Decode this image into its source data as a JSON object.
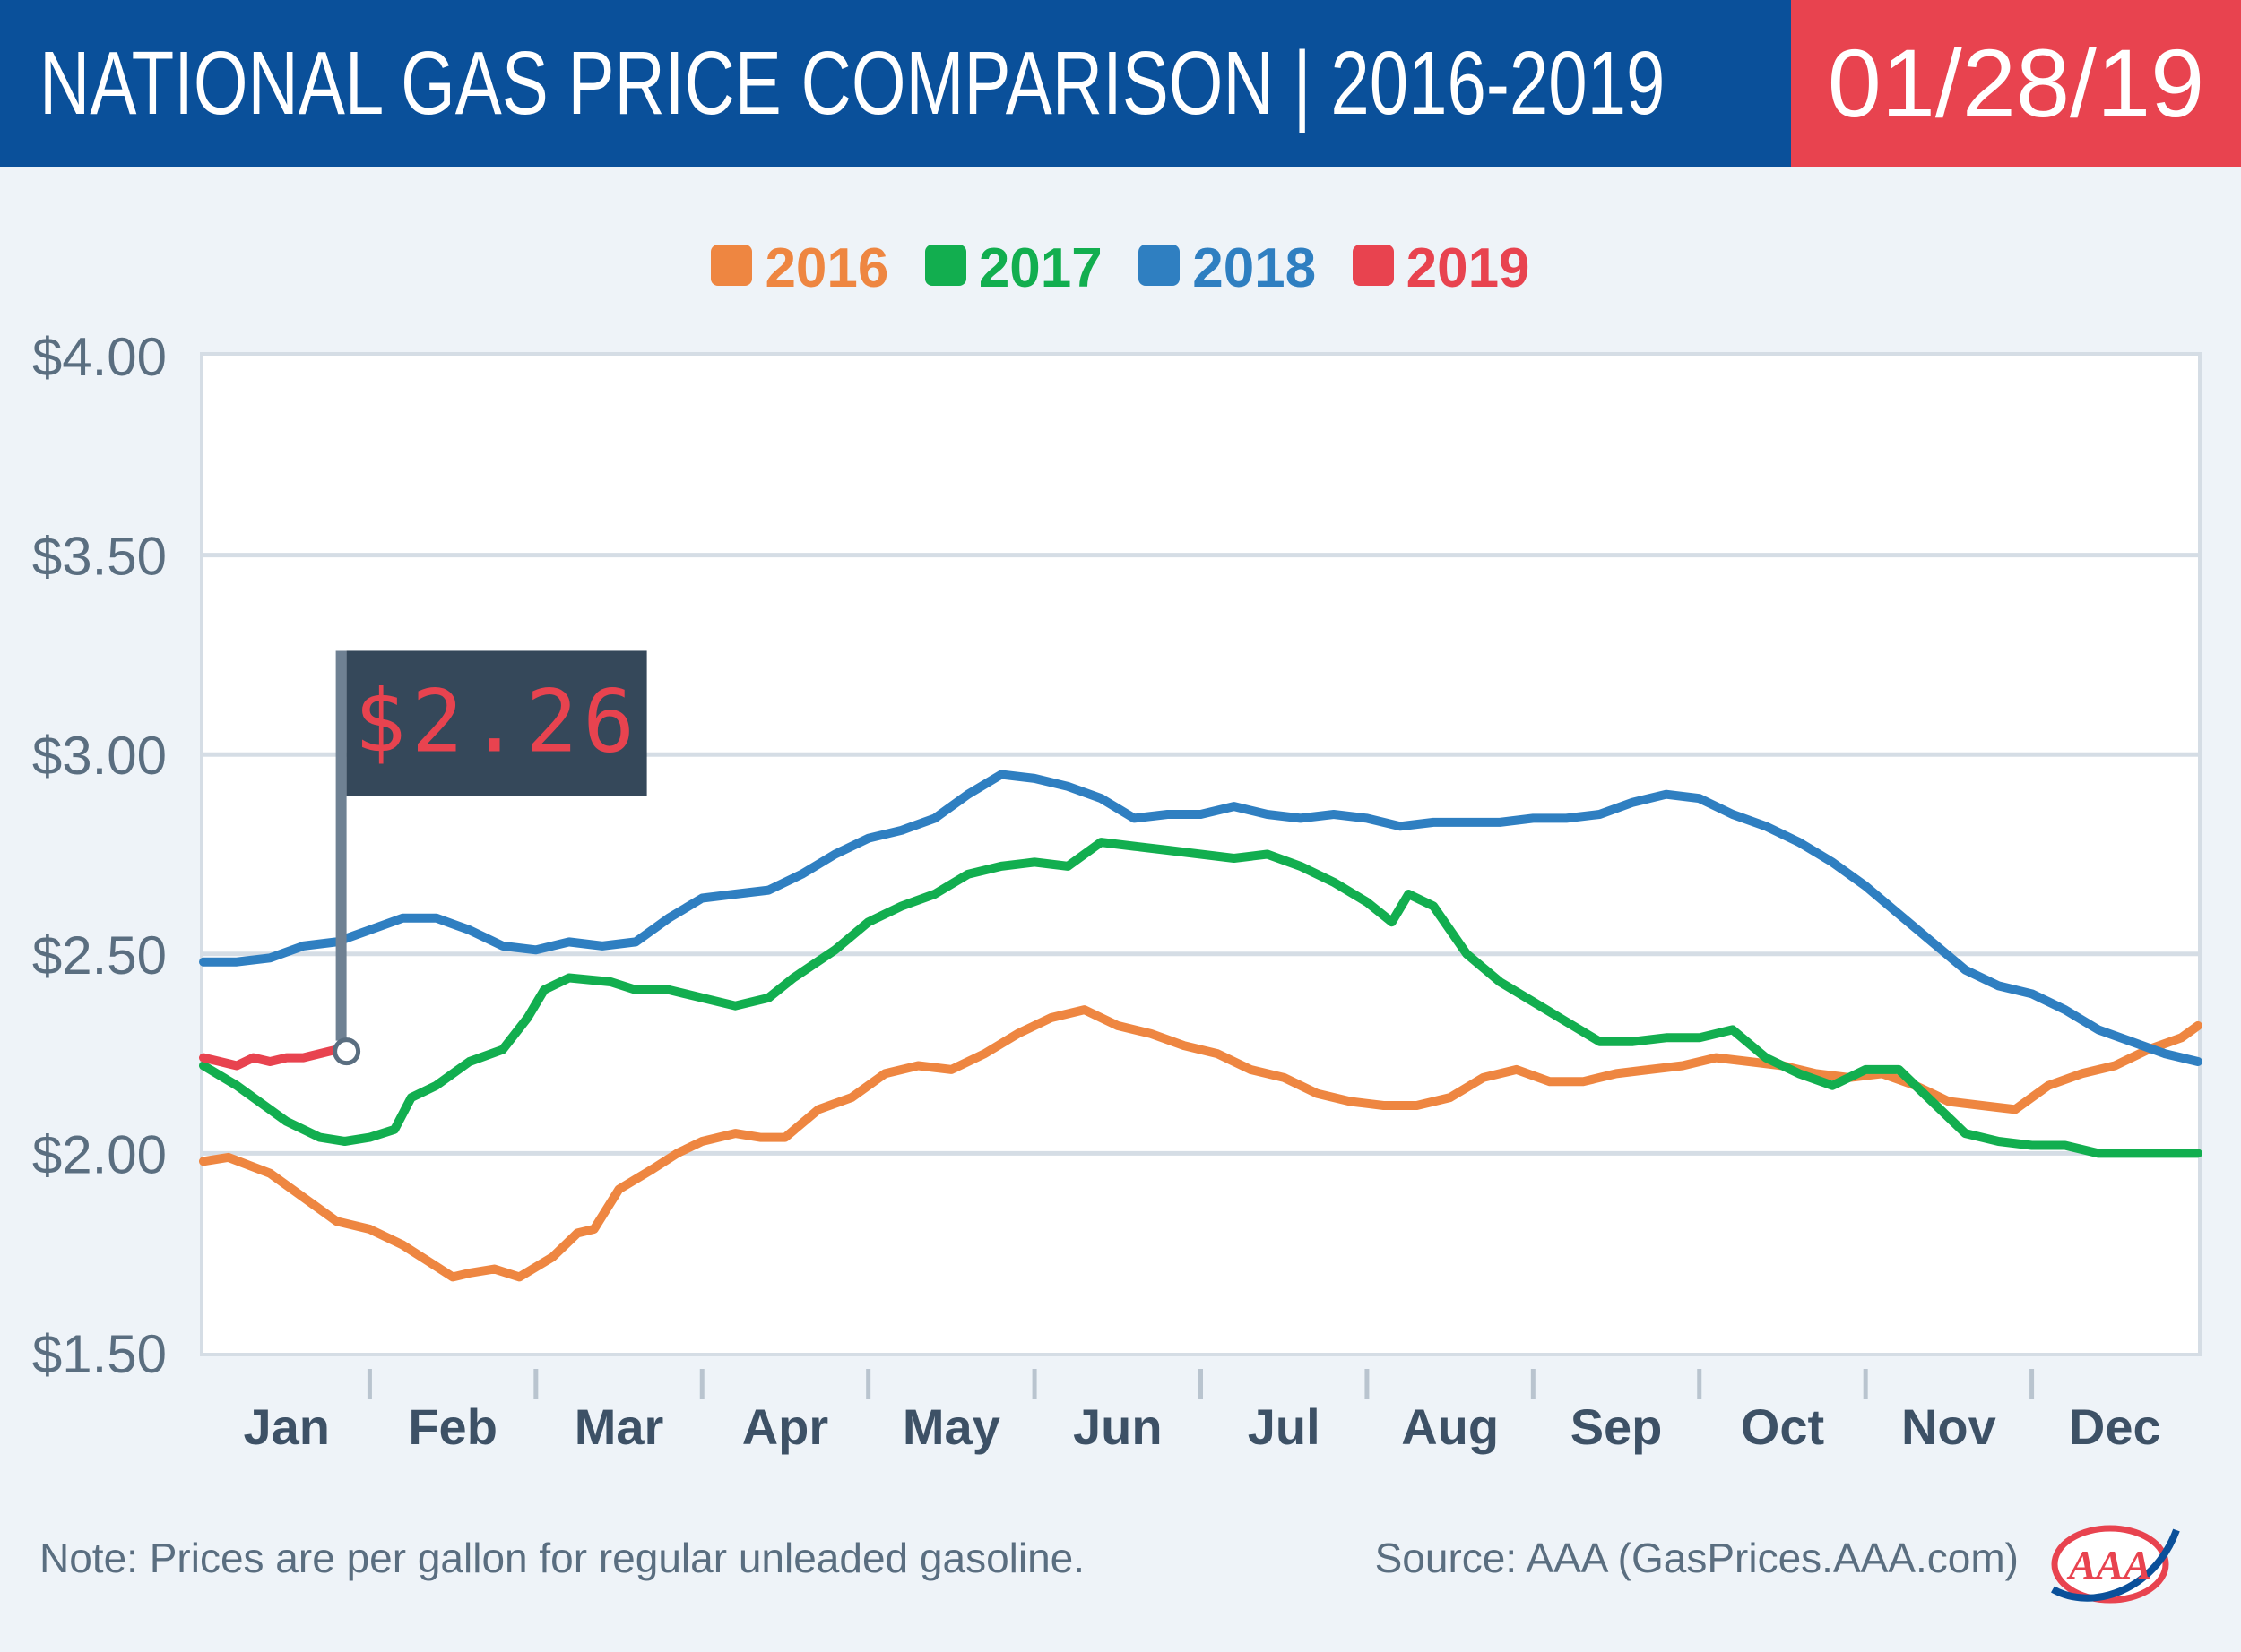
{
  "header": {
    "title": "NATIONAL GAS PRICE COMPARISON | 2016-2019",
    "date": "01/28/19"
  },
  "colors": {
    "header_bg": "#0a509a",
    "date_bg": "#e8434f",
    "2016": "#ee8641",
    "2017": "#12ae4f",
    "2018": "#2f7fc1",
    "2019": "#e8434f",
    "flag": "#35485a"
  },
  "legend": [
    {
      "label": "2016",
      "color": "#ee8641"
    },
    {
      "label": "2017",
      "color": "#12ae4f"
    },
    {
      "label": "2018",
      "color": "#2f7fc1"
    },
    {
      "label": "2019",
      "color": "#e8434f"
    }
  ],
  "annotation": {
    "label": "$2.26",
    "value": 2.26,
    "x": 0.85
  },
  "chart_data": {
    "type": "line",
    "title": "NATIONAL GAS PRICE COMPARISON | 2016-2019",
    "xlabel": "",
    "ylabel": "",
    "ylim": [
      1.5,
      4.0
    ],
    "xlim": [
      0,
      12
    ],
    "yticks": [
      4.0,
      3.5,
      3.0,
      2.5,
      2.0,
      1.5
    ],
    "ytick_labels": [
      "$4.00",
      "$3.50",
      "$3.00",
      "$2.50",
      "$2.00",
      "$1.50"
    ],
    "categories": [
      "Jan",
      "Feb",
      "Mar",
      "Apr",
      "May",
      "Jun",
      "Jul",
      "Aug",
      "Sep",
      "Oct",
      "Nov",
      "Dec"
    ],
    "grid": true,
    "series": [
      {
        "name": "2016",
        "x": [
          0,
          0.15,
          0.4,
          0.6,
          0.8,
          1.0,
          1.2,
          1.35,
          1.5,
          1.6,
          1.75,
          1.9,
          2.1,
          2.25,
          2.35,
          2.5,
          2.7,
          2.85,
          3.0,
          3.2,
          3.35,
          3.5,
          3.7,
          3.9,
          4.1,
          4.3,
          4.5,
          4.7,
          4.9,
          5.1,
          5.3,
          5.5,
          5.7,
          5.9,
          6.1,
          6.3,
          6.5,
          6.7,
          6.9,
          7.1,
          7.3,
          7.5,
          7.7,
          7.9,
          8.1,
          8.3,
          8.5,
          8.7,
          8.9,
          9.1,
          9.3,
          9.5,
          9.7,
          9.9,
          10.1,
          10.3,
          10.5,
          10.7,
          10.9,
          11.1,
          11.3,
          11.5,
          11.7,
          11.9,
          12.0
        ],
        "values": [
          1.98,
          1.99,
          1.95,
          1.89,
          1.83,
          1.81,
          1.77,
          1.73,
          1.69,
          1.7,
          1.71,
          1.69,
          1.74,
          1.8,
          1.81,
          1.91,
          1.96,
          2.0,
          2.03,
          2.05,
          2.04,
          2.04,
          2.11,
          2.14,
          2.2,
          2.22,
          2.21,
          2.25,
          2.3,
          2.34,
          2.36,
          2.32,
          2.3,
          2.27,
          2.25,
          2.21,
          2.19,
          2.15,
          2.13,
          2.12,
          2.12,
          2.14,
          2.19,
          2.21,
          2.18,
          2.18,
          2.2,
          2.21,
          2.22,
          2.24,
          2.23,
          2.22,
          2.2,
          2.19,
          2.2,
          2.17,
          2.13,
          2.12,
          2.11,
          2.17,
          2.2,
          2.22,
          2.26,
          2.29,
          2.32
        ]
      },
      {
        "name": "2017",
        "x": [
          0,
          0.2,
          0.5,
          0.7,
          0.85,
          1.0,
          1.15,
          1.25,
          1.4,
          1.6,
          1.8,
          1.95,
          2.05,
          2.2,
          2.45,
          2.6,
          2.8,
          3.0,
          3.2,
          3.4,
          3.55,
          3.8,
          4.0,
          4.2,
          4.4,
          4.6,
          4.8,
          5.0,
          5.2,
          5.4,
          5.6,
          5.8,
          6.0,
          6.2,
          6.4,
          6.6,
          6.8,
          7.0,
          7.15,
          7.25,
          7.4,
          7.6,
          7.8,
          8.0,
          8.2,
          8.4,
          8.6,
          8.8,
          9.0,
          9.2,
          9.4,
          9.6,
          9.8,
          10.0,
          10.2,
          10.4,
          10.6,
          10.8,
          11.0,
          11.2,
          11.4,
          11.6,
          11.8,
          12.0
        ],
        "values": [
          2.22,
          2.17,
          2.08,
          2.04,
          2.03,
          2.04,
          2.06,
          2.14,
          2.17,
          2.23,
          2.26,
          2.34,
          2.41,
          2.44,
          2.43,
          2.41,
          2.41,
          2.39,
          2.37,
          2.39,
          2.44,
          2.51,
          2.58,
          2.62,
          2.65,
          2.7,
          2.72,
          2.73,
          2.72,
          2.78,
          2.77,
          2.76,
          2.75,
          2.74,
          2.75,
          2.72,
          2.68,
          2.63,
          2.58,
          2.65,
          2.62,
          2.5,
          2.43,
          2.38,
          2.33,
          2.28,
          2.28,
          2.29,
          2.29,
          2.31,
          2.24,
          2.2,
          2.17,
          2.21,
          2.21,
          2.13,
          2.05,
          2.03,
          2.02,
          2.02,
          2.0,
          2.0,
          2.0,
          2.0
        ]
      },
      {
        "name": "2018",
        "x": [
          0,
          0.2,
          0.4,
          0.6,
          0.8,
          1.0,
          1.2,
          1.4,
          1.6,
          1.8,
          2.0,
          2.2,
          2.4,
          2.6,
          2.8,
          3.0,
          3.2,
          3.4,
          3.6,
          3.8,
          4.0,
          4.2,
          4.4,
          4.6,
          4.8,
          5.0,
          5.2,
          5.4,
          5.6,
          5.8,
          6.0,
          6.2,
          6.4,
          6.6,
          6.8,
          7.0,
          7.2,
          7.4,
          7.6,
          7.8,
          8.0,
          8.2,
          8.4,
          8.6,
          8.8,
          9.0,
          9.2,
          9.4,
          9.6,
          9.8,
          10.0,
          10.2,
          10.4,
          10.6,
          10.8,
          11.0,
          11.2,
          11.4,
          11.6,
          11.8,
          12.0
        ],
        "values": [
          2.48,
          2.48,
          2.49,
          2.52,
          2.53,
          2.56,
          2.59,
          2.59,
          2.56,
          2.52,
          2.51,
          2.53,
          2.52,
          2.53,
          2.59,
          2.64,
          2.65,
          2.66,
          2.7,
          2.75,
          2.79,
          2.81,
          2.84,
          2.9,
          2.95,
          2.94,
          2.92,
          2.89,
          2.84,
          2.85,
          2.85,
          2.87,
          2.85,
          2.84,
          2.85,
          2.84,
          2.82,
          2.83,
          2.83,
          2.83,
          2.84,
          2.84,
          2.85,
          2.88,
          2.9,
          2.89,
          2.85,
          2.82,
          2.78,
          2.73,
          2.67,
          2.6,
          2.53,
          2.46,
          2.42,
          2.4,
          2.36,
          2.31,
          2.28,
          2.25,
          2.23
        ]
      },
      {
        "name": "2019",
        "x": [
          0,
          0.1,
          0.2,
          0.3,
          0.4,
          0.5,
          0.6,
          0.7,
          0.8,
          0.85
        ],
        "values": [
          2.24,
          2.23,
          2.22,
          2.24,
          2.23,
          2.24,
          2.24,
          2.25,
          2.26,
          2.26
        ]
      }
    ]
  },
  "footer": {
    "note": "Note: Prices are per gallon for regular unleaded gasoline.",
    "source": "Source: AAA (GasPrices.AAA.com)",
    "logo_text": "AAA"
  }
}
